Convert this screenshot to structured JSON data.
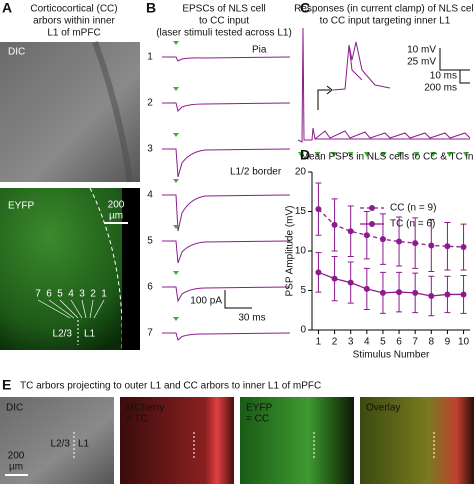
{
  "panels": {
    "A": {
      "letter": "A",
      "title": [
        "Corticocortical (CC)",
        "arbors within inner",
        "L1 of mPFC"
      ],
      "dic_label": "DIC",
      "eyfp_label": "EYFP",
      "scale": [
        "200",
        "µm"
      ],
      "sites": [
        "7",
        "6",
        "5",
        "4",
        "3",
        "2",
        "1"
      ],
      "layers": [
        "L2/3",
        "L1"
      ]
    },
    "B": {
      "letter": "B",
      "title": [
        "EPSCs of NLS cell",
        "to CC input",
        "(laser stimuli tested across L1)"
      ],
      "traces": [
        "1",
        "2",
        "3",
        "4",
        "5",
        "6",
        "7"
      ],
      "pia": "Pia",
      "border": "L1/2 border",
      "scale": [
        "100 pA",
        "30 ms"
      ]
    },
    "C": {
      "letter": "C",
      "title": [
        "Responses (in current clamp) of NLS cell",
        "to CC input targeting inner L1"
      ],
      "scale": [
        "10 mV",
        "25 mV",
        "10 ms",
        "200 ms"
      ]
    },
    "E": {
      "letter": "E",
      "title": "TC arbors projecting to outer L1 and CC arbors to inner L1 of mPFC",
      "images": [
        [
          "DIC"
        ],
        [
          "MCherry",
          "= TC"
        ],
        [
          "EYFP",
          "= CC"
        ],
        [
          "Overlay"
        ]
      ],
      "layers": [
        "L2/3",
        "L1"
      ],
      "scale": [
        "200",
        "µm"
      ]
    }
  },
  "chart_data": {
    "type": "line",
    "letter": "D",
    "title": "Mean PSPs in NLS cells to CC & TC input",
    "x": [
      1,
      2,
      3,
      4,
      5,
      6,
      7,
      8,
      9,
      10
    ],
    "xlim": [
      0.6,
      10.4
    ],
    "xticks": [
      1,
      2,
      3,
      4,
      5,
      6,
      7,
      8,
      9,
      10
    ],
    "ylim": [
      0,
      20
    ],
    "yticks": [
      0,
      5,
      10,
      15,
      20
    ],
    "xlabel": "Stimulus Number",
    "ylabel": "PSP Amplitude (mV)",
    "series": [
      {
        "name": "CC (n = 9)",
        "color": "#8e1b8e",
        "dashed": true,
        "values": [
          15.3,
          13.3,
          12.5,
          12.0,
          11.5,
          11.2,
          11.0,
          10.7,
          10.6,
          10.5
        ],
        "errors": [
          3.3,
          3.3,
          3.2,
          3.0,
          3.2,
          3.1,
          3.2,
          3.3,
          3.0,
          2.9
        ]
      },
      {
        "name": "TC (n = 6)",
        "color": "#8e1b8e",
        "dashed": false,
        "values": [
          7.3,
          6.5,
          6.0,
          5.2,
          4.7,
          4.8,
          4.7,
          4.3,
          4.5,
          4.5
        ],
        "errors": [
          2.5,
          2.8,
          2.6,
          2.6,
          2.6,
          2.5,
          2.5,
          2.5,
          2.3,
          2.4
        ]
      }
    ],
    "legend": "upper right"
  }
}
